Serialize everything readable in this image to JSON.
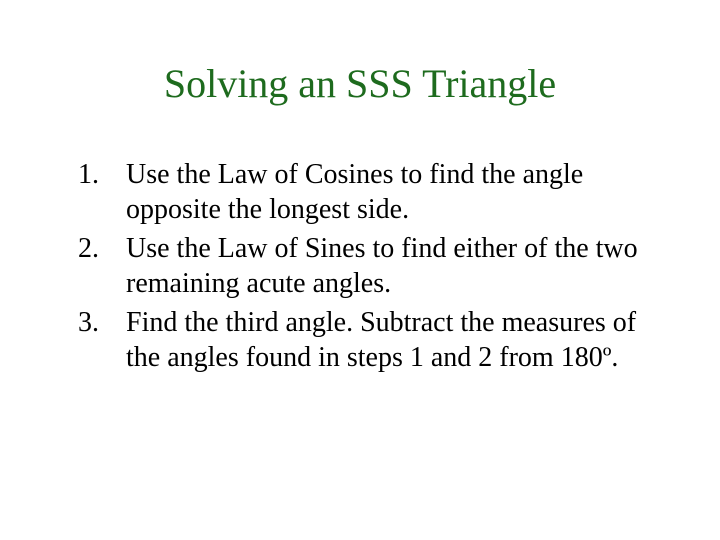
{
  "title": {
    "text": "Solving an SSS Triangle",
    "color": "#1e6b1e",
    "fontsize": 40
  },
  "body": {
    "color": "#000000",
    "fontsize": 28
  },
  "items": [
    "Use the Law of Cosines to find the angle opposite the longest side.",
    "Use the Law of Sines to find either of the two remaining acute angles.",
    "Find the third angle. Subtract the measures of the angles found in steps 1 and 2 from 180º."
  ]
}
